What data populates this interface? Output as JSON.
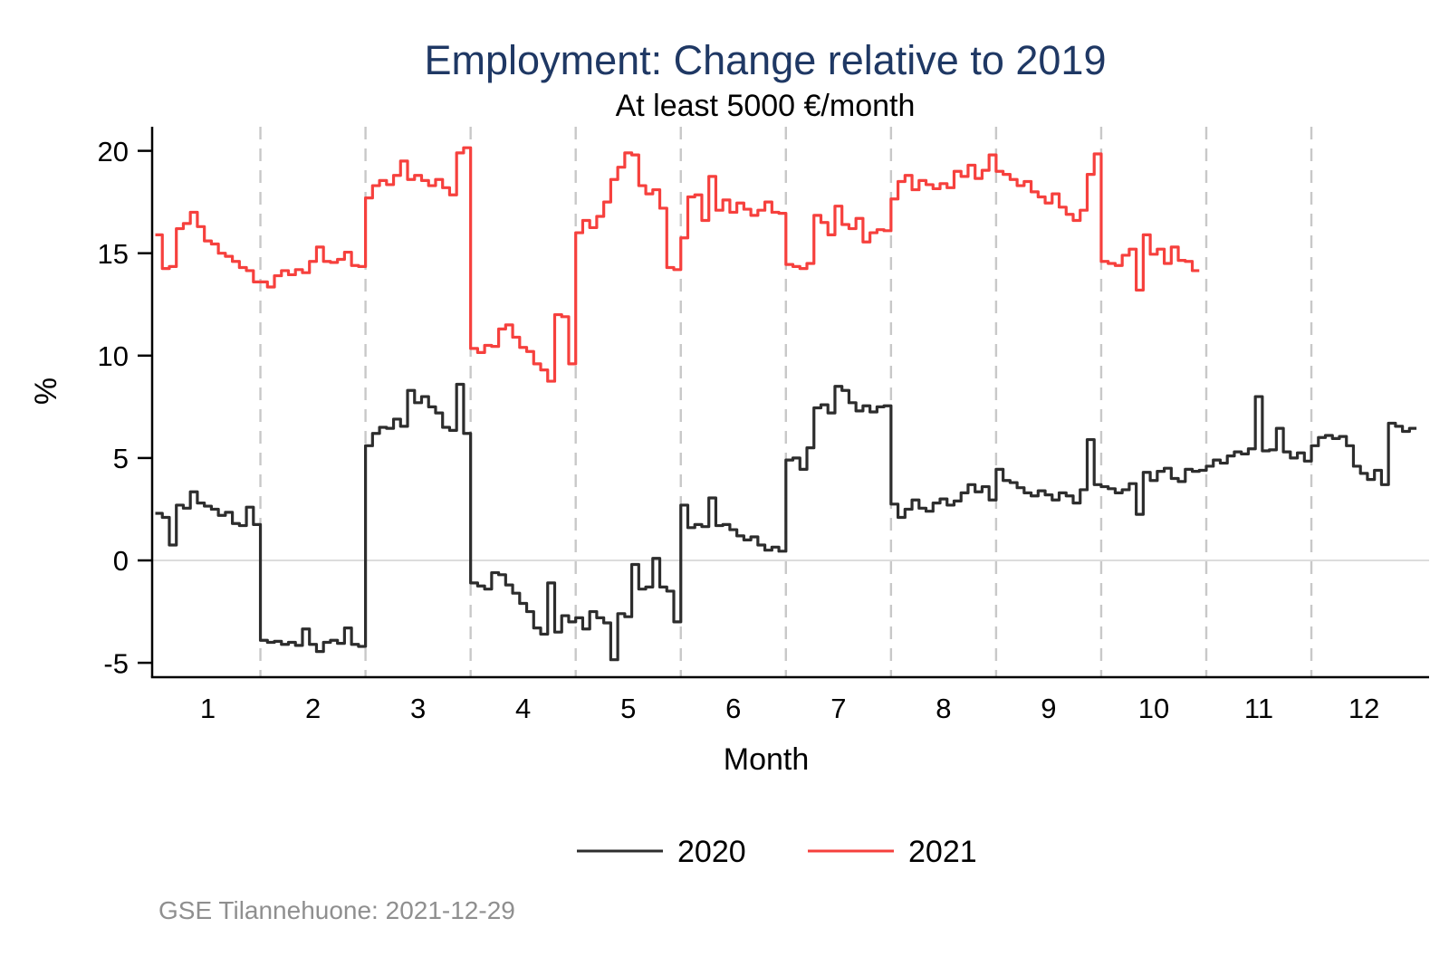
{
  "chart": {
    "title": "Employment: Change relative to 2019",
    "subtitle": "At least 5000 €/month",
    "xlabel": "Month",
    "ylabel": "%",
    "footer": "GSE Tilannehuone: 2021-12-29",
    "colors": {
      "title": "#1f3864",
      "series_2020": "#2d2d2d",
      "series_2021": "#f6403d",
      "axis": "#000000",
      "gridline": "#c8c8c8",
      "zero_line": "#dcdcdc",
      "footer": "#8f8f8f"
    },
    "y_ticks": [
      20,
      15,
      10,
      5,
      0,
      -5
    ],
    "x_ticks": [
      1,
      2,
      3,
      4,
      5,
      6,
      7,
      8,
      9,
      10,
      11,
      12
    ]
  },
  "chart_data": {
    "type": "line",
    "step": true,
    "title": "Employment: Change relative to 2019",
    "subtitle": "At least 5000 €/month",
    "xlabel": "Month",
    "ylabel": "%",
    "xlim": [
      0.45,
      12.55
    ],
    "ylim": [
      -5.6,
      21.2
    ],
    "grid": "dashed vertical at month boundaries 1.5 to 11.5, light solid line at y=0",
    "legend_position": "bottom",
    "x_start_month": 0.5,
    "points_per_month": 15,
    "series": [
      {
        "name": "2020",
        "color": "#2d2d2d",
        "values": [
          2.3,
          2.1,
          0.75,
          2.7,
          2.55,
          3.35,
          2.8,
          2.65,
          2.5,
          2.2,
          2.35,
          1.8,
          1.7,
          2.6,
          1.75,
          -3.9,
          -4.0,
          -3.95,
          -4.1,
          -4.0,
          -4.15,
          -3.35,
          -4.1,
          -4.45,
          -4.0,
          -3.9,
          -4.05,
          -3.3,
          -4.1,
          -4.2,
          5.6,
          6.2,
          6.5,
          6.45,
          6.9,
          6.55,
          8.3,
          7.7,
          8.0,
          7.5,
          7.2,
          6.5,
          6.35,
          8.6,
          6.2,
          -1.1,
          -1.25,
          -1.4,
          -0.6,
          -0.7,
          -1.2,
          -1.6,
          -2.1,
          -2.5,
          -3.3,
          -3.6,
          -1.1,
          -3.5,
          -2.7,
          -3.0,
          -2.8,
          -3.35,
          -2.5,
          -2.8,
          -3.05,
          -4.85,
          -2.6,
          -2.75,
          -0.2,
          -1.4,
          -1.3,
          0.1,
          -1.3,
          -1.5,
          -3.0,
          2.7,
          1.6,
          1.75,
          1.65,
          3.05,
          1.7,
          1.75,
          1.5,
          1.2,
          1.0,
          1.15,
          0.75,
          0.5,
          0.65,
          0.45,
          4.9,
          5.0,
          4.45,
          5.5,
          7.45,
          7.6,
          7.2,
          8.5,
          8.3,
          7.7,
          7.3,
          7.55,
          7.25,
          7.5,
          7.55,
          2.75,
          2.1,
          2.5,
          2.95,
          2.55,
          2.4,
          2.8,
          3.0,
          2.7,
          2.9,
          3.3,
          3.7,
          3.35,
          3.6,
          2.95,
          4.45,
          3.9,
          3.8,
          3.55,
          3.3,
          3.15,
          3.4,
          3.2,
          2.95,
          3.3,
          3.15,
          2.8,
          3.45,
          5.9,
          3.7,
          3.6,
          3.5,
          3.3,
          3.45,
          3.75,
          2.25,
          4.3,
          3.9,
          4.35,
          4.5,
          4.0,
          3.85,
          4.45,
          4.35,
          4.4,
          4.6,
          4.9,
          4.75,
          5.1,
          5.3,
          5.2,
          5.45,
          8.0,
          5.35,
          5.4,
          6.45,
          5.3,
          5.0,
          5.25,
          4.85,
          5.6,
          6.0,
          6.1,
          5.95,
          6.05,
          5.6,
          4.6,
          4.25,
          3.95,
          4.4,
          3.7,
          6.7,
          6.55,
          6.3,
          6.45
        ]
      },
      {
        "name": "2021",
        "color": "#f6403d",
        "values": [
          15.9,
          14.25,
          14.35,
          16.2,
          16.45,
          17.0,
          16.3,
          15.6,
          15.45,
          15.0,
          14.85,
          14.6,
          14.3,
          14.15,
          13.6,
          13.6,
          13.35,
          13.9,
          14.15,
          13.95,
          14.2,
          14.05,
          14.6,
          15.3,
          14.6,
          14.55,
          14.7,
          15.05,
          14.4,
          14.35,
          17.7,
          18.3,
          18.55,
          18.35,
          18.8,
          19.5,
          18.6,
          18.8,
          18.55,
          18.3,
          18.6,
          18.2,
          17.85,
          19.9,
          20.15,
          10.35,
          10.15,
          10.5,
          10.45,
          11.3,
          11.5,
          10.9,
          10.4,
          10.2,
          9.6,
          9.3,
          8.75,
          12.0,
          11.9,
          9.6,
          16.0,
          16.6,
          16.25,
          16.8,
          17.5,
          18.6,
          19.2,
          19.9,
          19.8,
          18.3,
          17.9,
          18.1,
          17.2,
          14.3,
          14.2,
          15.75,
          17.75,
          17.85,
          16.6,
          18.75,
          17.1,
          17.6,
          17.0,
          17.45,
          17.15,
          16.85,
          17.1,
          17.5,
          17.0,
          16.95,
          14.45,
          14.35,
          14.25,
          14.5,
          16.85,
          16.5,
          15.9,
          17.3,
          16.4,
          16.2,
          16.7,
          15.55,
          16.0,
          16.15,
          16.1,
          17.65,
          18.5,
          18.8,
          18.1,
          18.55,
          18.35,
          18.15,
          18.4,
          18.2,
          19.0,
          18.75,
          19.3,
          18.65,
          19.05,
          19.8,
          19.0,
          18.85,
          18.6,
          18.3,
          18.5,
          18.0,
          17.75,
          17.45,
          17.9,
          17.25,
          16.9,
          16.6,
          17.1,
          18.85,
          19.85,
          14.6,
          14.5,
          14.4,
          14.9,
          15.2,
          13.2,
          15.9,
          14.95,
          15.2,
          14.5,
          15.3,
          14.65,
          14.6,
          14.15
        ]
      }
    ]
  }
}
